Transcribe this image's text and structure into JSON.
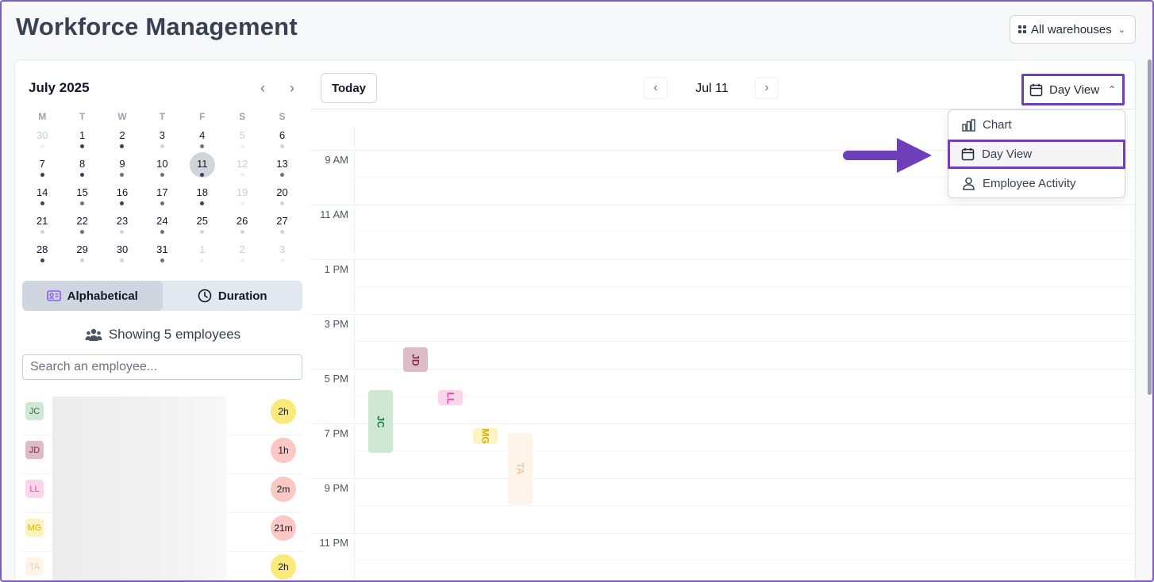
{
  "header": {
    "title": "Workforce Management",
    "warehouse_label": "All warehouses"
  },
  "calendar": {
    "month_title": "July 2025",
    "weekdays": [
      "M",
      "T",
      "W",
      "T",
      "F",
      "S",
      "S"
    ],
    "days": [
      {
        "n": "30",
        "other": true,
        "dot": "none"
      },
      {
        "n": "1",
        "other": false,
        "dot": "dark"
      },
      {
        "n": "2",
        "other": false,
        "dot": "dark"
      },
      {
        "n": "3",
        "other": false,
        "dot": "light"
      },
      {
        "n": "4",
        "other": false,
        "dot": "mid"
      },
      {
        "n": "5",
        "other": true,
        "dot": "none"
      },
      {
        "n": "6",
        "other": false,
        "dot": "light"
      },
      {
        "n": "7",
        "other": false,
        "dot": "dark"
      },
      {
        "n": "8",
        "other": false,
        "dot": "dark"
      },
      {
        "n": "9",
        "other": false,
        "dot": "mid"
      },
      {
        "n": "10",
        "other": false,
        "dot": "mid"
      },
      {
        "n": "11",
        "other": false,
        "dot": "dark",
        "selected": true
      },
      {
        "n": "12",
        "other": true,
        "dot": "none"
      },
      {
        "n": "13",
        "other": false,
        "dot": "mid"
      },
      {
        "n": "14",
        "other": false,
        "dot": "dark"
      },
      {
        "n": "15",
        "other": false,
        "dot": "mid"
      },
      {
        "n": "16",
        "other": false,
        "dot": "dark"
      },
      {
        "n": "17",
        "other": false,
        "dot": "mid"
      },
      {
        "n": "18",
        "other": false,
        "dot": "dark"
      },
      {
        "n": "19",
        "other": true,
        "dot": "none"
      },
      {
        "n": "20",
        "other": false,
        "dot": "light"
      },
      {
        "n": "21",
        "other": false,
        "dot": "light"
      },
      {
        "n": "22",
        "other": false,
        "dot": "mid"
      },
      {
        "n": "23",
        "other": false,
        "dot": "light"
      },
      {
        "n": "24",
        "other": false,
        "dot": "mid"
      },
      {
        "n": "25",
        "other": false,
        "dot": "light"
      },
      {
        "n": "26",
        "other": false,
        "dot": "light"
      },
      {
        "n": "27",
        "other": false,
        "dot": "light"
      },
      {
        "n": "28",
        "other": false,
        "dot": "dark"
      },
      {
        "n": "29",
        "other": false,
        "dot": "light"
      },
      {
        "n": "30",
        "other": false,
        "dot": "light"
      },
      {
        "n": "31",
        "other": false,
        "dot": "mid"
      },
      {
        "n": "1",
        "other": true,
        "dot": "none"
      },
      {
        "n": "2",
        "other": true,
        "dot": "none"
      },
      {
        "n": "3",
        "other": true,
        "dot": "none"
      }
    ]
  },
  "sort": {
    "alphabetical_label": "Alphabetical",
    "duration_label": "Duration",
    "active": "alphabetical"
  },
  "employees": {
    "showing_text": "Showing 5 employees",
    "search_placeholder": "Search an employee...",
    "list": [
      {
        "initials": "JC",
        "duration": "2h",
        "avatar_bg": "#cfe8d4",
        "avatar_fg": "#1f7a3a",
        "dur_bg": "#fbe97a"
      },
      {
        "initials": "JD",
        "duration": "1h",
        "avatar_bg": "#dcbcc6",
        "avatar_fg": "#8a2a45",
        "dur_bg": "#fbc8c4"
      },
      {
        "initials": "LL",
        "duration": "2m",
        "avatar_bg": "#fbd5ea",
        "avatar_fg": "#e04aa0",
        "dur_bg": "#fbc8c4"
      },
      {
        "initials": "MG",
        "duration": "21m",
        "avatar_bg": "#fdf3c2",
        "avatar_fg": "#d9b100",
        "dur_bg": "#fbc8c4"
      },
      {
        "initials": "TA",
        "duration": "2h",
        "avatar_bg": "#fff4ea",
        "avatar_fg": "#f3c79c",
        "dur_bg": "#fbe97a"
      }
    ]
  },
  "toolbar": {
    "today_label": "Today",
    "date_label": "Jul 11",
    "view_label": "Day View"
  },
  "timeline": {
    "hours": [
      "9 AM",
      "11 AM",
      "1 PM",
      "3 PM",
      "5 PM",
      "7 PM",
      "9 PM",
      "11 PM"
    ],
    "events": [
      {
        "initials": "JD",
        "bg": "#dcbcc6",
        "fg": "#8a2a45",
        "opacity": 1
      },
      {
        "initials": "JC",
        "bg": "#cfe8d4",
        "fg": "#1f7a3a",
        "opacity": 1
      },
      {
        "initials": "LL",
        "bg": "#fbd5ea",
        "fg": "#e04aa0",
        "opacity": 1
      },
      {
        "initials": "MG",
        "bg": "#fdf3c2",
        "fg": "#d9b100",
        "opacity": 1
      },
      {
        "initials": "TA",
        "bg": "#fff4ea",
        "fg": "#f3c79c",
        "opacity": 1
      }
    ]
  },
  "view_menu": {
    "items": [
      {
        "label": "Chart",
        "icon": "bar-chart-icon"
      },
      {
        "label": "Day View",
        "icon": "calendar-icon",
        "highlighted": true
      },
      {
        "label": "Employee Activity",
        "icon": "user-icon"
      }
    ]
  },
  "colors": {
    "accent": "#6d3fb8",
    "arrow": "#6d3fb8"
  }
}
